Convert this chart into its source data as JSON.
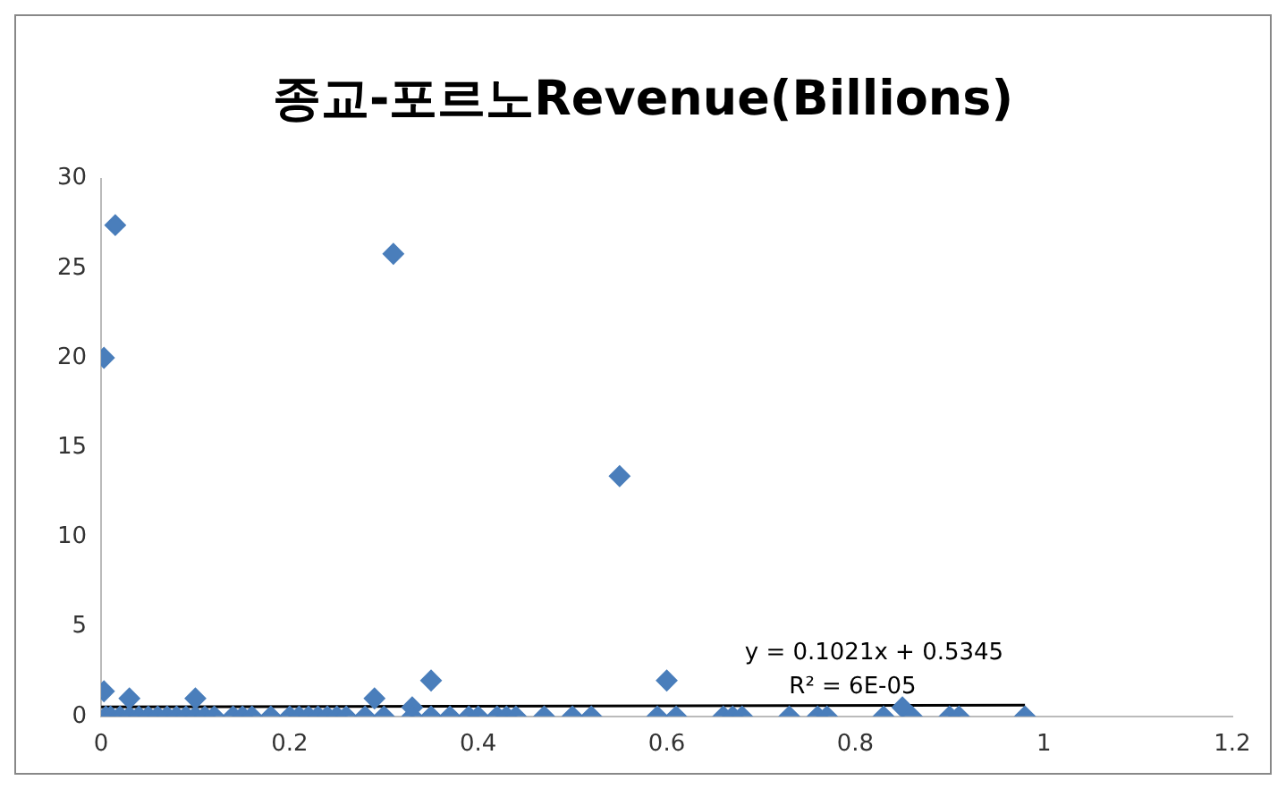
{
  "chart_data": {
    "type": "scatter",
    "title": "종교-포르노Revenue(Billions)",
    "marker": "diamond",
    "grid": false,
    "legend": false,
    "xlim": [
      0,
      1.2
    ],
    "xticks": [
      0,
      0.2,
      0.4,
      0.6,
      0.8,
      1,
      1.2
    ],
    "ylim": [
      0,
      30
    ],
    "yticks": [
      0,
      5,
      10,
      15,
      20,
      25,
      30
    ],
    "annotations": [
      "y = 0.1021x + 0.5345",
      "R² = 6E-05"
    ],
    "series": [
      {
        "color": "#4a7ebb",
        "x": [
          0.003,
          0.015,
          0.31,
          0.55,
          0.35,
          0.6,
          0.003,
          0.03,
          0.1,
          0.29,
          0.33,
          0.85,
          0.005,
          0.01,
          0.02,
          0.03,
          0.04,
          0.05,
          0.06,
          0.07,
          0.08,
          0.09,
          0.1,
          0.11,
          0.12,
          0.14,
          0.15,
          0.16,
          0.18,
          0.2,
          0.21,
          0.22,
          0.23,
          0.24,
          0.25,
          0.26,
          0.28,
          0.3,
          0.33,
          0.35,
          0.37,
          0.39,
          0.4,
          0.42,
          0.43,
          0.44,
          0.47,
          0.5,
          0.52,
          0.59,
          0.61,
          0.66,
          0.67,
          0.68,
          0.73,
          0.76,
          0.77,
          0.83,
          0.86,
          0.9,
          0.91,
          0.98
        ],
        "values": [
          20,
          27.4,
          25.8,
          13.4,
          2,
          2,
          1.4,
          1,
          1,
          1,
          0.5,
          0.5,
          0,
          0,
          0,
          0,
          0,
          0,
          0,
          0,
          0,
          0,
          0,
          0,
          0,
          0,
          0,
          0,
          0,
          0,
          0,
          0,
          0,
          0,
          0,
          0,
          0,
          0,
          0,
          0,
          0,
          0,
          0,
          0,
          0,
          0,
          0,
          0,
          0,
          0,
          0,
          0,
          0,
          0,
          0,
          0,
          0,
          0,
          0,
          0,
          0,
          0
        ]
      },
      {
        "type": "line",
        "marker": "none",
        "color": "#000000",
        "x": [
          0,
          0.98
        ],
        "values": [
          0.53,
          0.63
        ]
      }
    ]
  }
}
